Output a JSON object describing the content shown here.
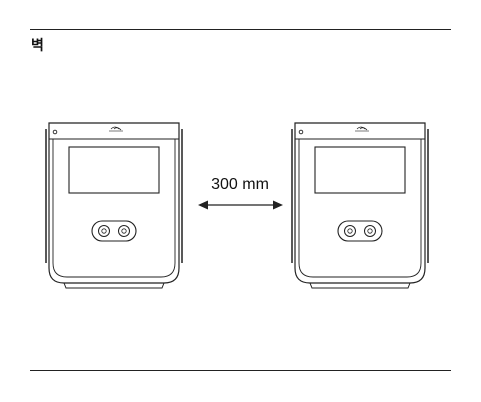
{
  "page": {
    "wall_label": "벽",
    "distance_label": "300 mm"
  },
  "devices": [
    {
      "name": "device-left"
    },
    {
      "name": "device-right"
    }
  ],
  "icons": {
    "nfc": "nfc-wave-icon",
    "camera": "dual-camera-icon",
    "arrow": "double-arrow-icon"
  },
  "colors": {
    "stroke": "#222222",
    "background": "#ffffff"
  }
}
